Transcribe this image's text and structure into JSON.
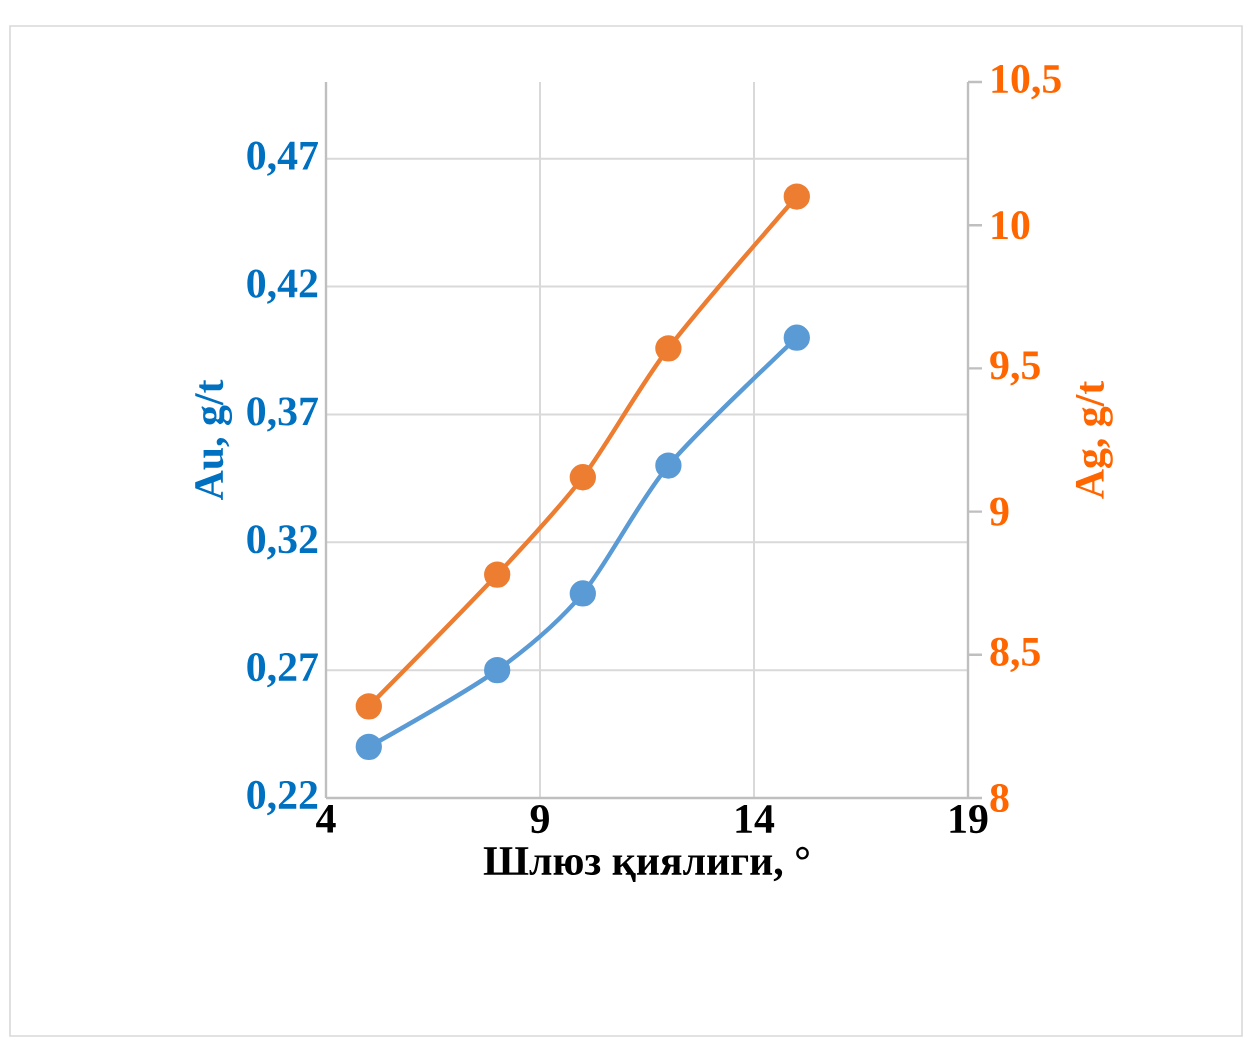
{
  "chart_data": {
    "type": "line",
    "xlabel": "Шлюз қиялиги, °",
    "ylabel": "Au, g/t",
    "y2label": "Ag, g/t",
    "x": [
      5,
      8,
      10,
      12,
      15
    ],
    "series": [
      {
        "color": "#5b9bd5",
        "values": [
          0.24,
          0.27,
          0.3,
          0.35,
          0.4
        ]
      },
      {
        "color": "#ed7d31",
        "values": [
          8.32,
          8.78,
          9.12,
          9.57,
          10.1
        ],
        "axis": "y2"
      }
    ],
    "xlim": [
      4,
      19
    ],
    "xticks": [
      4,
      9,
      14,
      19
    ],
    "ylim": [
      0.22,
      0.5
    ],
    "yticks": [
      {
        "value": 0.22,
        "label": "0,22"
      },
      {
        "value": 0.27,
        "label": "0,27"
      },
      {
        "value": 0.32,
        "label": "0,32"
      },
      {
        "value": 0.37,
        "label": "0,37"
      },
      {
        "value": 0.42,
        "label": "0,42"
      },
      {
        "value": 0.47,
        "label": "0,47"
      }
    ],
    "y2lim": [
      8,
      10.5
    ],
    "y2ticks": [
      8,
      {
        "value": 8.5,
        "label": "8,5"
      },
      9,
      {
        "value": 9.5,
        "label": "9,5"
      },
      10,
      {
        "value": 10.5,
        "label": "10,5"
      }
    ],
    "grid": true,
    "marker": "circle",
    "line_style": "solid"
  }
}
